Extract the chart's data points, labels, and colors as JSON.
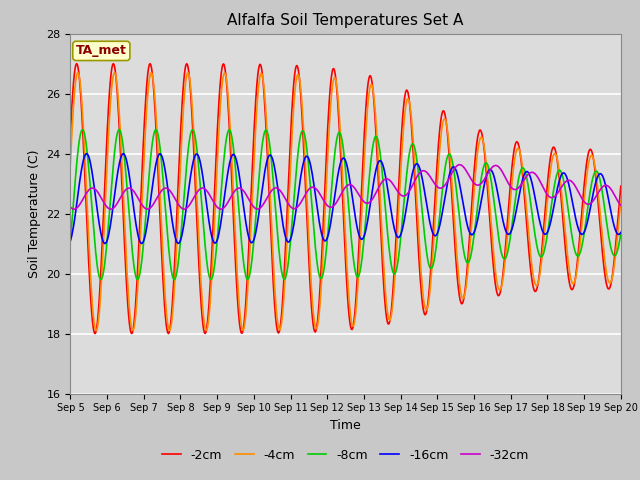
{
  "title": "Alfalfa Soil Temperatures Set A",
  "xlabel": "Time",
  "ylabel": "Soil Temperature (C)",
  "ylim": [
    16,
    28
  ],
  "xlim": [
    0,
    15
  ],
  "xtick_labels": [
    "Sep 5",
    "Sep 6",
    "Sep 7",
    "Sep 8",
    "Sep 9",
    "Sep 10",
    "Sep 11",
    "Sep 12",
    "Sep 13",
    "Sep 14",
    "Sep 15",
    "Sep 16",
    "Sep 17",
    "Sep 18",
    "Sep 19",
    "Sep 20"
  ],
  "xtick_positions": [
    0,
    1,
    2,
    3,
    4,
    5,
    6,
    7,
    8,
    9,
    10,
    11,
    12,
    13,
    14,
    15
  ],
  "ytick_positions": [
    16,
    18,
    20,
    22,
    24,
    26,
    28
  ],
  "annotation_text": "TA_met",
  "annotation_color": "#8B0000",
  "annotation_bg": "#FFFFCC",
  "series_colors": [
    "#FF0000",
    "#FF8C00",
    "#00CC00",
    "#0000FF",
    "#CC00CC"
  ],
  "series_labels": [
    "-2cm",
    "-4cm",
    "-8cm",
    "-16cm",
    "-32cm"
  ],
  "bg_color": "#DCDCDC",
  "grid_color": "#FFFFFF",
  "linewidth": 1.2,
  "n_points": 720
}
